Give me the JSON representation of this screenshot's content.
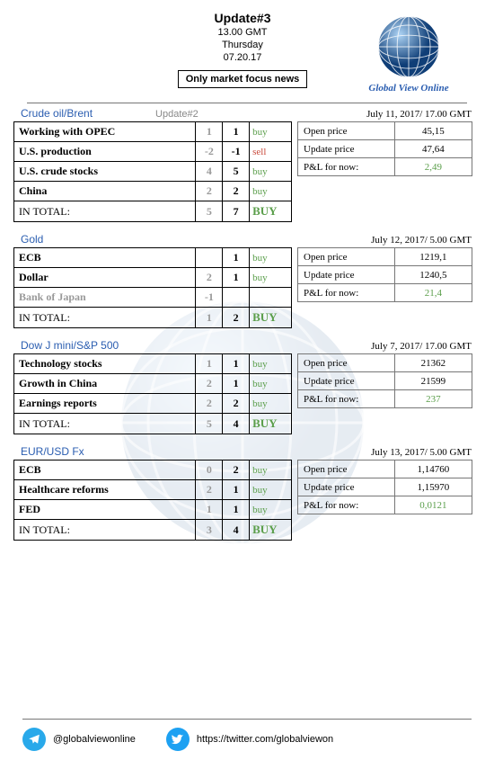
{
  "header": {
    "title": "Update#3",
    "time": "13.00 GMT",
    "day": "Thursday",
    "date": "07.20.17",
    "tagline": "Only market focus news"
  },
  "logo": {
    "text": "Global View Online"
  },
  "colors": {
    "link": "#2a5db0",
    "buy": "#5a9e4a",
    "sell": "#c94a3b",
    "muted": "#999999",
    "border": "#000000",
    "info_border": "#777777"
  },
  "sections": [
    {
      "title": "Crude oil/Brent",
      "update_tag": "Update#2",
      "date": "July 11, 2017/ 17.00 GMT",
      "rows": [
        {
          "label": "Working with OPEC",
          "c1": "1",
          "c2": "1",
          "action": "buy",
          "action_class": "buy"
        },
        {
          "label": "U.S. production",
          "c1": "-2",
          "c2": "-1",
          "action": "sell",
          "action_class": "sell"
        },
        {
          "label": "U.S. crude stocks",
          "c1": "4",
          "c2": "5",
          "action": "buy",
          "action_class": "buy"
        },
        {
          "label": "China",
          "c1": "2",
          "c2": "2",
          "action": "buy",
          "action_class": "buy"
        }
      ],
      "total": {
        "label": "IN TOTAL:",
        "c1": "5",
        "c2": "7",
        "action": "BUY",
        "action_class": "buy"
      },
      "info": {
        "open_k": "Open price",
        "open_v": "45,15",
        "upd_k": "Update price",
        "upd_v": "47,64",
        "pnl_k": "P&L for now:",
        "pnl_v": "2,49"
      }
    },
    {
      "title": "Gold",
      "update_tag": "",
      "date": "July 12, 2017/ 5.00 GMT",
      "rows": [
        {
          "label": "ECB",
          "c1": "",
          "c2": "1",
          "action": "buy",
          "action_class": "buy"
        },
        {
          "label": "Dollar",
          "c1": "2",
          "c2": "1",
          "action": "buy",
          "action_class": "buy"
        },
        {
          "label": "Bank of Japan",
          "faded": true,
          "c1": "-1",
          "c2": "",
          "action": "",
          "action_class": ""
        }
      ],
      "total": {
        "label": "IN TOTAL:",
        "c1": "1",
        "c2": "2",
        "action": "BUY",
        "action_class": "buy"
      },
      "info": {
        "open_k": "Open price",
        "open_v": "1219,1",
        "upd_k": "Update price",
        "upd_v": "1240,5",
        "pnl_k": "P&L for now:",
        "pnl_v": "21,4"
      }
    },
    {
      "title": "Dow J mini/S&P 500",
      "update_tag": "",
      "date": "July 7, 2017/ 17.00 GMT",
      "rows": [
        {
          "label": "Technology stocks",
          "c1": "1",
          "c2": "1",
          "action": "buy",
          "action_class": "buy"
        },
        {
          "label": "Growth in China",
          "c1": "2",
          "c2": "1",
          "action": "buy",
          "action_class": "buy"
        },
        {
          "label": "Earnings reports",
          "c1": "2",
          "c2": "2",
          "action": "buy",
          "action_class": "buy"
        }
      ],
      "total": {
        "label": "IN TOTAL:",
        "c1": "5",
        "c2": "4",
        "action": "BUY",
        "action_class": "buy"
      },
      "info": {
        "open_k": "Open price",
        "open_v": "21362",
        "upd_k": "Update price",
        "upd_v": "21599",
        "pnl_k": "P&L for now:",
        "pnl_v": "237"
      }
    },
    {
      "title": "EUR/USD Fx",
      "update_tag": "",
      "date": "July 13, 2017/ 5.00 GMT",
      "rows": [
        {
          "label": "ECB",
          "c1": "0",
          "c2": "2",
          "action": "buy",
          "action_class": "buy"
        },
        {
          "label": "Healthcare reforms",
          "c1": "2",
          "c2": "1",
          "action": "buy",
          "action_class": "buy"
        },
        {
          "label": "FED",
          "c1": "1",
          "c2": "1",
          "action": "buy",
          "action_class": "buy"
        }
      ],
      "total": {
        "label": "IN TOTAL:",
        "c1": "3",
        "c2": "4",
        "action": "BUY",
        "action_class": "buy"
      },
      "info": {
        "open_k": "Open price",
        "open_v": "1,14760",
        "upd_k": "Update price",
        "upd_v": "1,15970",
        "pnl_k": "P&L for now:",
        "pnl_v": "0,0121"
      }
    }
  ],
  "footer": {
    "telegram": "@globalviewonline",
    "twitter": "https://twitter.com/globalviewon"
  }
}
